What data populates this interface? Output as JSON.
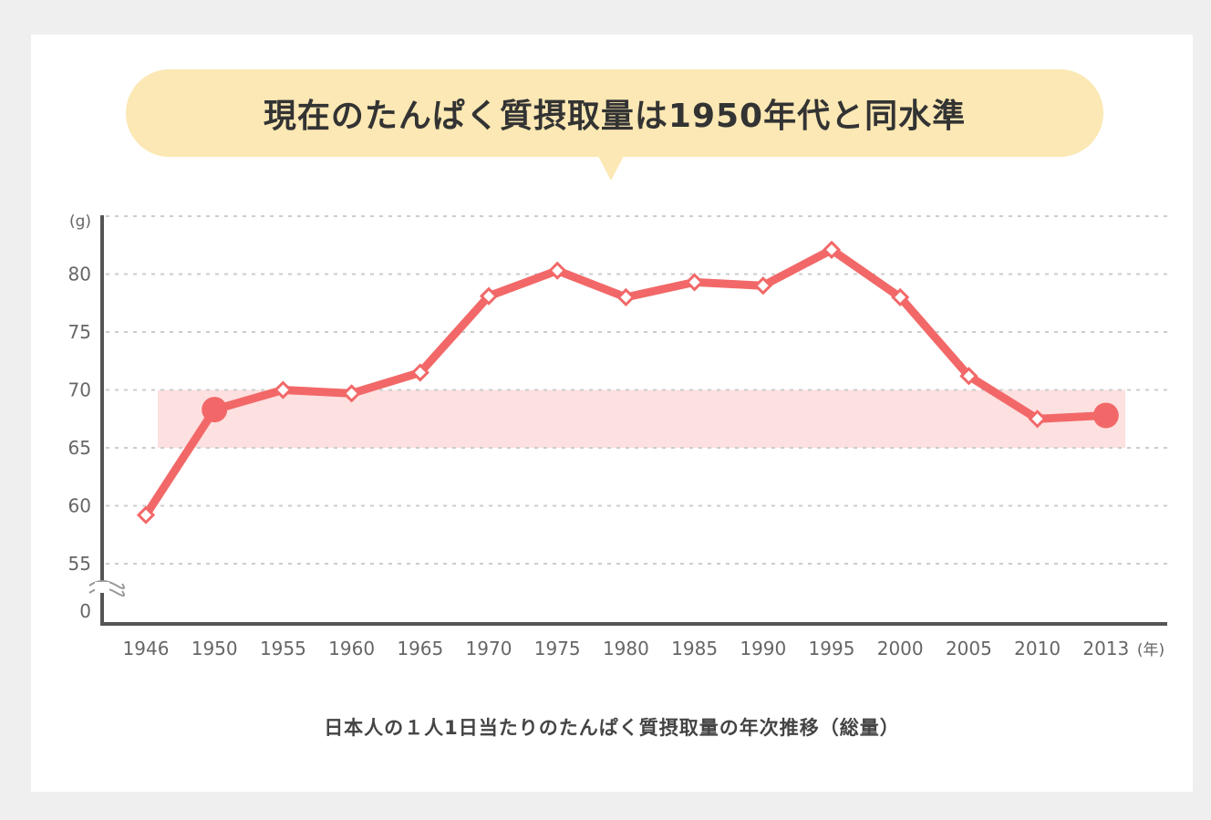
{
  "headline": "現在のたんぱく質摂取量は1950年代と同水準",
  "caption": "日本人の１人1日当たりのたんぱく質摂取量の年次推移（総量）",
  "colors": {
    "line": "#f26868",
    "band": "#fde0e0",
    "bubble": "#fbe8b4",
    "axis": "#555555",
    "grid": "#cccccc"
  },
  "chart_data": {
    "type": "line",
    "title": "",
    "xlabel": "(年)",
    "ylabel": "(g)",
    "y_unit_label": "(g)",
    "x_unit_label": "(年)",
    "y_axis_break": true,
    "y_ticks": [
      "0",
      "55",
      "60",
      "65",
      "70",
      "75",
      "80"
    ],
    "ylim": [
      55,
      85
    ],
    "grid": true,
    "highlight_band": [
      65,
      70
    ],
    "categories": [
      "1946",
      "1950",
      "1955",
      "1960",
      "1965",
      "1970",
      "1975",
      "1980",
      "1985",
      "1990",
      "1995",
      "2000",
      "2005",
      "2010",
      "2013"
    ],
    "series": [
      {
        "values": [
          59.2,
          68.3,
          70.0,
          69.7,
          71.5,
          78.1,
          80.3,
          78.0,
          79.3,
          79.0,
          82.1,
          78.0,
          71.2,
          67.5,
          67.8
        ],
        "highlighted": [
          "1950",
          "2013"
        ]
      }
    ]
  }
}
